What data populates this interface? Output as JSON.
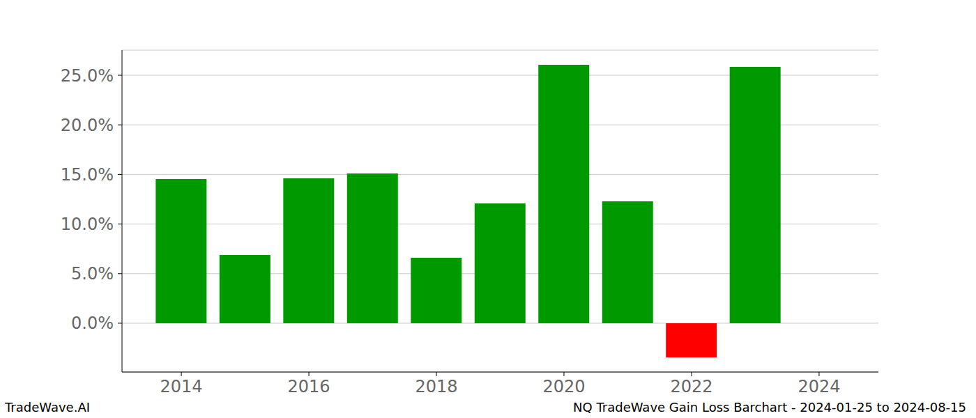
{
  "chart_data": {
    "type": "bar",
    "title": "NQ TradeWave Gain Loss Barchart - 2024-01-25 to 2024-08-15",
    "annotations": [
      "TradeWave.AI"
    ],
    "x": [
      2014,
      2015,
      2016,
      2017,
      2018,
      2019,
      2020,
      2021,
      2022,
      2023
    ],
    "values": [
      14.54,
      6.88,
      14.6,
      15.1,
      6.6,
      12.08,
      26.05,
      12.29,
      -3.44,
      25.84
    ],
    "colors": [
      "#009900",
      "#009900",
      "#009900",
      "#009900",
      "#009900",
      "#009900",
      "#009900",
      "#009900",
      "#ff0000",
      "#009900"
    ],
    "xlim": [
      2013.07,
      2024.93
    ],
    "xticks": [
      2014,
      2016,
      2018,
      2020,
      2022,
      2024
    ],
    "ylim": [
      -4.92,
      27.53
    ],
    "yticks": [
      {
        "value": 0,
        "label": "0.0%"
      },
      {
        "value": 5,
        "label": "5.0%"
      },
      {
        "value": 10,
        "label": "10.0%"
      },
      {
        "value": 15,
        "label": "15.0%"
      },
      {
        "value": 20,
        "label": "20.0%"
      },
      {
        "value": 25,
        "label": "25.0%"
      }
    ],
    "grid": true
  }
}
